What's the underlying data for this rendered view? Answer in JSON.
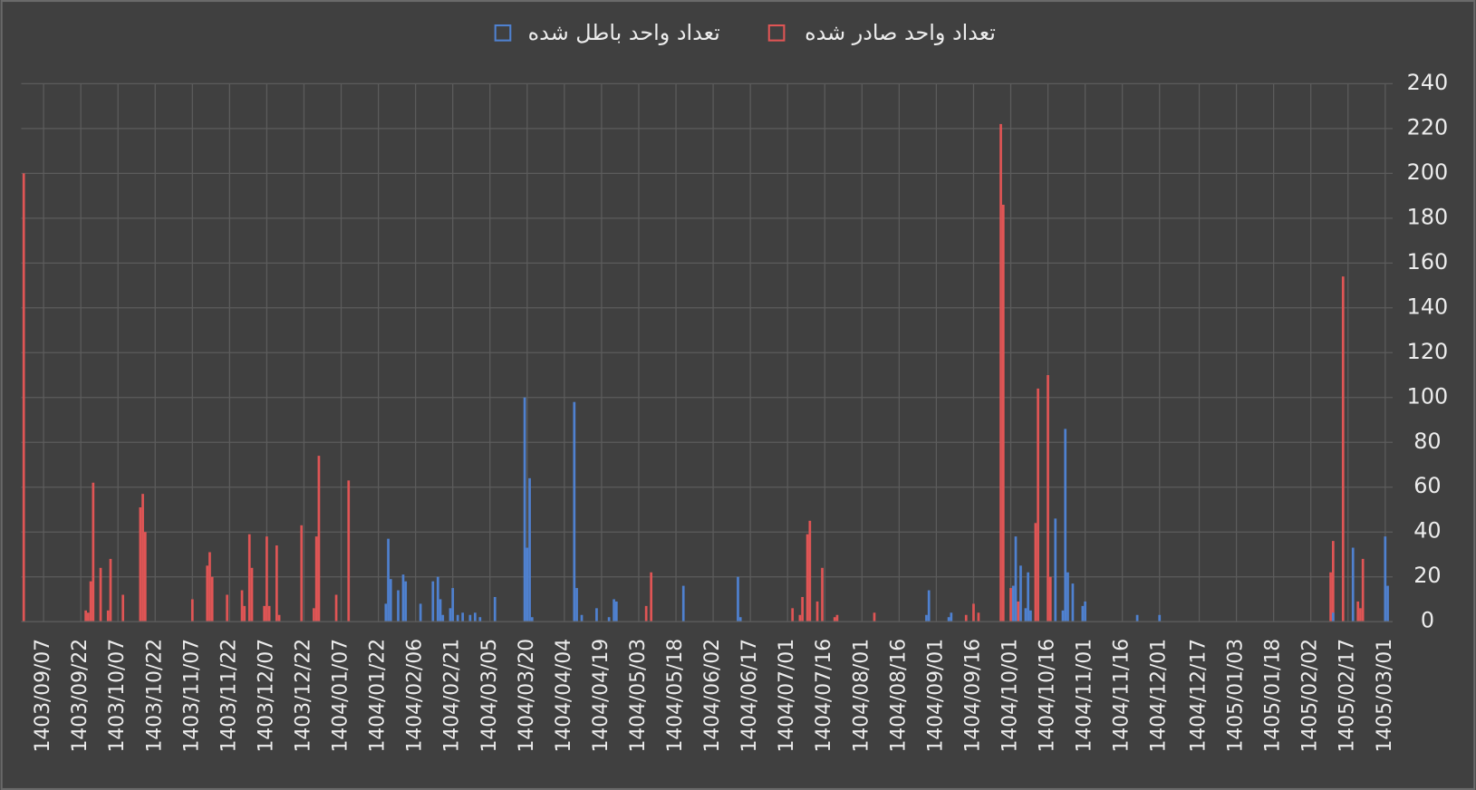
{
  "chart_data": {
    "type": "bar",
    "xlim": [
      "1403/08/28",
      "1405/03/04"
    ],
    "xticks": [
      "1403/09/07",
      "1403/09/22",
      "1403/10/07",
      "1403/10/22",
      "1403/11/07",
      "1403/11/22",
      "1403/12/07",
      "1403/12/22",
      "1404/01/07",
      "1404/01/22",
      "1404/02/06",
      "1404/02/21",
      "1404/03/05",
      "1404/03/20",
      "1404/04/04",
      "1404/04/19",
      "1404/05/03",
      "1404/05/18",
      "1404/06/02",
      "1404/06/17",
      "1404/07/01",
      "1404/07/16",
      "1404/08/01",
      "1404/08/16",
      "1404/09/01",
      "1404/09/16",
      "1404/10/01",
      "1404/10/16",
      "1404/11/01",
      "1404/11/16",
      "1404/12/01",
      "1404/12/17",
      "1405/01/03",
      "1405/01/18",
      "1405/02/02",
      "1405/02/17",
      "1405/03/01"
    ],
    "ylim": [
      0,
      240
    ],
    "yticks": [
      0,
      20,
      40,
      60,
      80,
      100,
      120,
      140,
      160,
      180,
      200,
      220,
      240
    ],
    "grid": true,
    "legend": "top",
    "series": [
      {
        "name": "تعداد واحد صادر شده",
        "color": "#e05555",
        "x": [
          "1403/08/29",
          "1403/09/24",
          "1403/09/25",
          "1403/09/26",
          "1403/09/27",
          "1403/09/30",
          "1403/10/03",
          "1403/10/04",
          "1403/10/09",
          "1403/10/16",
          "1403/10/17",
          "1403/10/18",
          "1403/11/07",
          "1403/11/13",
          "1403/11/14",
          "1403/11/15",
          "1403/11/21",
          "1403/11/27",
          "1403/11/28",
          "1403/11/30",
          "1403/12/01",
          "1403/12/06",
          "1403/12/07",
          "1403/12/08",
          "1403/12/11",
          "1403/12/12",
          "1403/12/21",
          "1403/12/26",
          "1403/12/27",
          "1403/12/28",
          "1404/01/05",
          "1404/01/10",
          "1404/05/06",
          "1404/05/08",
          "1404/07/03",
          "1404/07/06",
          "1404/07/07",
          "1404/07/09",
          "1404/07/10",
          "1404/07/13",
          "1404/07/15",
          "1404/07/20",
          "1404/07/21",
          "1404/08/06",
          "1404/09/13",
          "1404/09/16",
          "1404/09/18",
          "1404/09/27",
          "1404/09/28",
          "1404/10/01",
          "1404/10/02",
          "1404/10/04",
          "1404/10/11",
          "1404/10/12",
          "1404/10/16",
          "1404/10/17",
          "1405/02/10",
          "1405/02/11",
          "1405/02/15",
          "1405/02/21",
          "1405/02/22",
          "1405/02/23"
        ],
        "values": [
          200,
          5,
          4,
          18,
          62,
          24,
          5,
          28,
          12,
          51,
          57,
          40,
          10,
          25,
          31,
          20,
          12,
          14,
          7,
          39,
          24,
          7,
          38,
          7,
          34,
          3,
          43,
          6,
          38,
          74,
          12,
          63,
          7,
          22,
          6,
          3,
          11,
          39,
          45,
          9,
          24,
          2,
          3,
          4,
          3,
          8,
          4,
          222,
          186,
          15,
          16,
          9,
          44,
          104,
          110,
          20,
          22,
          36,
          154,
          9,
          6,
          28
        ]
      },
      {
        "name": "تعداد واحد باطل شده",
        "color": "#4f81d0",
        "x": [
          "1404/01/25",
          "1404/01/26",
          "1404/01/27",
          "1404/01/30",
          "1404/02/01",
          "1404/02/02",
          "1404/02/08",
          "1404/02/13",
          "1404/02/15",
          "1404/02/16",
          "1404/02/17",
          "1404/02/20",
          "1404/02/21",
          "1404/02/23",
          "1404/02/25",
          "1404/02/28",
          "1404/02/30",
          "1404/03/01",
          "1404/03/07",
          "1404/03/19",
          "1404/03/20",
          "1404/03/21",
          "1404/03/22",
          "1404/04/08",
          "1404/04/09",
          "1404/04/11",
          "1404/04/17",
          "1404/04/22",
          "1404/04/24",
          "1404/04/25",
          "1404/05/21",
          "1404/06/12",
          "1404/06/13",
          "1404/08/27",
          "1404/08/28",
          "1404/09/06",
          "1404/09/07",
          "1404/10/02",
          "1404/10/03",
          "1404/10/05",
          "1404/10/07",
          "1404/10/08",
          "1404/10/09",
          "1404/10/19",
          "1404/10/22",
          "1404/10/23",
          "1404/10/24",
          "1404/10/26",
          "1404/10/30",
          "1404/11/01",
          "1404/11/22",
          "1404/12/01",
          "1405/02/11",
          "1405/02/19",
          "1405/03/01",
          "1405/03/02"
        ],
        "values": [
          8,
          37,
          19,
          14,
          21,
          18,
          8,
          18,
          20,
          10,
          3,
          6,
          15,
          3,
          4,
          3,
          4,
          2,
          11,
          100,
          33,
          64,
          2,
          98,
          15,
          3,
          6,
          2,
          10,
          9,
          16,
          20,
          2,
          3,
          14,
          2,
          4,
          16,
          38,
          25,
          6,
          22,
          5,
          46,
          5,
          86,
          22,
          17,
          7,
          9,
          3,
          3,
          4,
          33,
          38,
          16
        ]
      }
    ]
  }
}
